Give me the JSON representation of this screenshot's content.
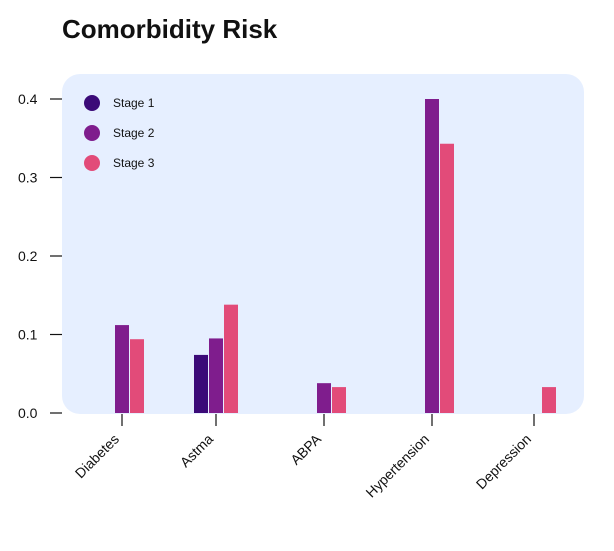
{
  "chart_data": {
    "type": "bar",
    "title": "Comorbidity Risk",
    "xlabel": "",
    "ylabel": "",
    "categories": [
      "Diabetes",
      "Astma",
      "ABPA",
      "Hypertension",
      "Depression"
    ],
    "series": [
      {
        "name": "Stage 1",
        "color": "#3b0a78",
        "values": [
          null,
          0.074,
          null,
          null,
          null
        ]
      },
      {
        "name": "Stage 2",
        "color": "#7f1d8d",
        "values": [
          0.112,
          0.095,
          0.038,
          0.4,
          null
        ]
      },
      {
        "name": "Stage 3",
        "color": "#e24b79",
        "values": [
          0.094,
          0.138,
          0.033,
          0.343,
          0.033
        ]
      }
    ],
    "ylim": [
      0,
      0.4
    ],
    "yticks": [
      "0.0",
      "0.1",
      "0.2",
      "0.3",
      "0.4"
    ],
    "grid": false,
    "legend_position": "top-left",
    "plot_background": "#e6efff"
  }
}
